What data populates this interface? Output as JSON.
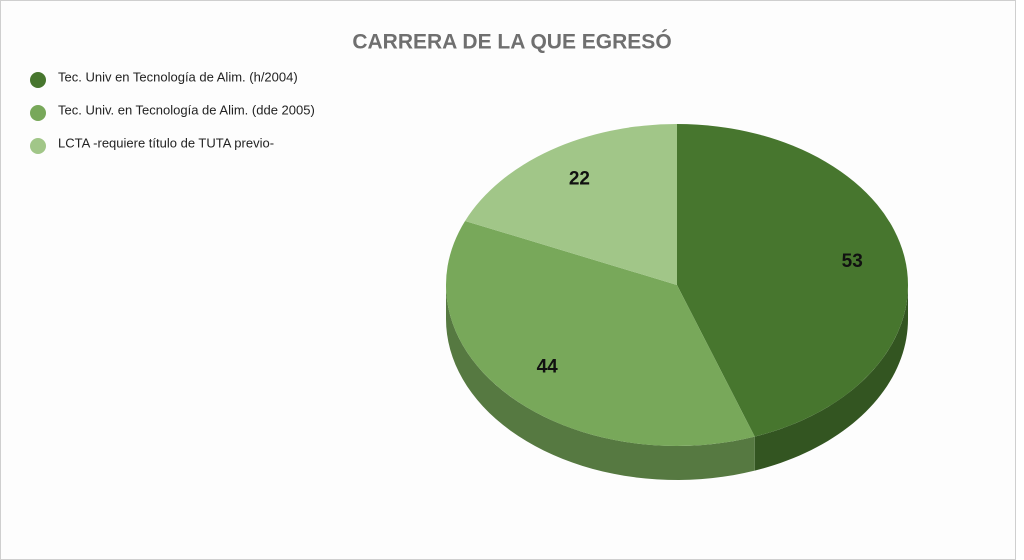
{
  "chart_data": {
    "type": "pie",
    "title": "CARRERA DE LA QUE EGRESÓ",
    "categories": [
      "Tec. Univ en Tecnología de Alim. (h/2004)",
      "Tec. Univ. en Tecnología de Alim. (dde 2005)",
      "LCTA -requiere título de TUTA previo-"
    ],
    "values": [
      53,
      44,
      22
    ],
    "colors": [
      "#47762e",
      "#78a85a",
      "#a1c688"
    ]
  }
}
